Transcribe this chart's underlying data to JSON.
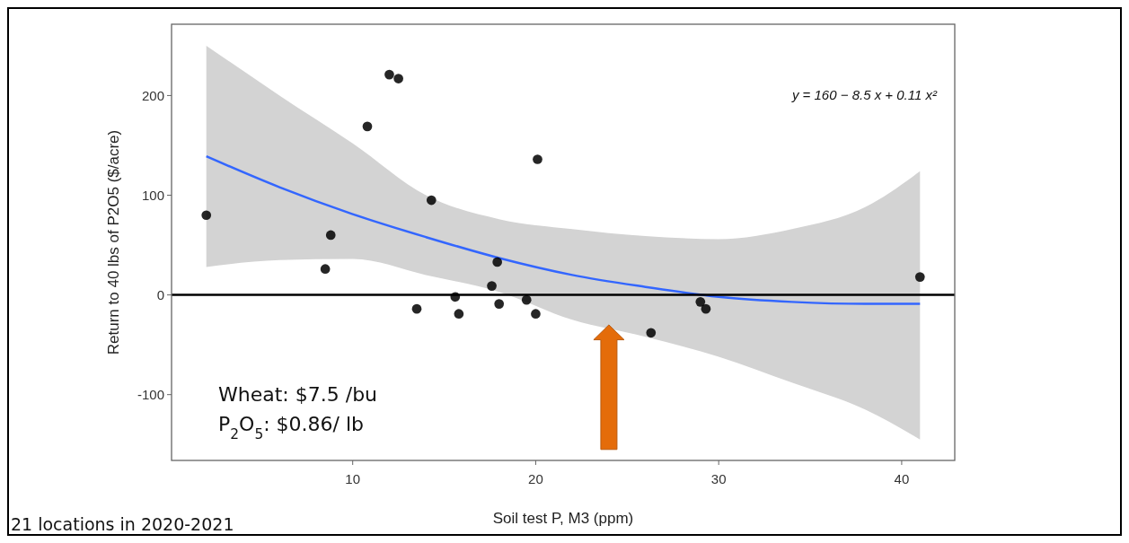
{
  "chart_data": {
    "type": "scatter",
    "xlabel": "Soil test P, M3 (ppm)",
    "ylabel": "Return to 40 lbs of P2O5 ($/acre)",
    "xlim": [
      0.1,
      42.9
    ],
    "ylim": [
      -166,
      271.5
    ],
    "xticks": [
      10,
      20,
      30,
      40
    ],
    "yticks": [
      -100,
      0,
      100,
      200
    ],
    "grid": false,
    "marker": "circle",
    "series": [
      {
        "type": "line",
        "marker": "none",
        "color": "#3366ff",
        "x": [
          2,
          6,
          10,
          14,
          18,
          22,
          26,
          30,
          34,
          38,
          41
        ],
        "values": [
          139,
          108,
          81,
          58,
          37,
          20,
          8,
          -2,
          -7,
          -9,
          -9
        ],
        "lower": [
          28,
          35,
          36,
          20,
          3,
          -25,
          -42,
          -62,
          -88,
          -115,
          -145
        ],
        "upper": [
          250,
          200,
          152,
          100,
          76,
          66,
          59,
          56,
          66,
          88,
          124
        ]
      },
      {
        "color": "#000000",
        "x": [
          2.0,
          8.5,
          8.8,
          10.8,
          12.0,
          12.5,
          14.3,
          20.1,
          17.9,
          17.6,
          15.6,
          13.5,
          15.8,
          18.0,
          19.5,
          20.0,
          26.3,
          29.0,
          29.3,
          41.0
        ],
        "values": [
          80,
          26,
          60,
          169,
          221,
          217,
          95,
          136,
          33,
          9,
          -2,
          -14,
          -19,
          -9,
          -5,
          -19,
          -38,
          -7,
          -14,
          18
        ]
      }
    ],
    "ref_lines": [
      {
        "axis": "y",
        "value": 0,
        "color": "#000000"
      }
    ],
    "annotations": [
      "y = 160 − 8.5 x + 0.11 x²",
      "Wheat:  $7.5 /bu",
      "P$_{2}$O$_{5}$:  $0.86/ lb",
      "21 locations in 2020-2021"
    ]
  }
}
